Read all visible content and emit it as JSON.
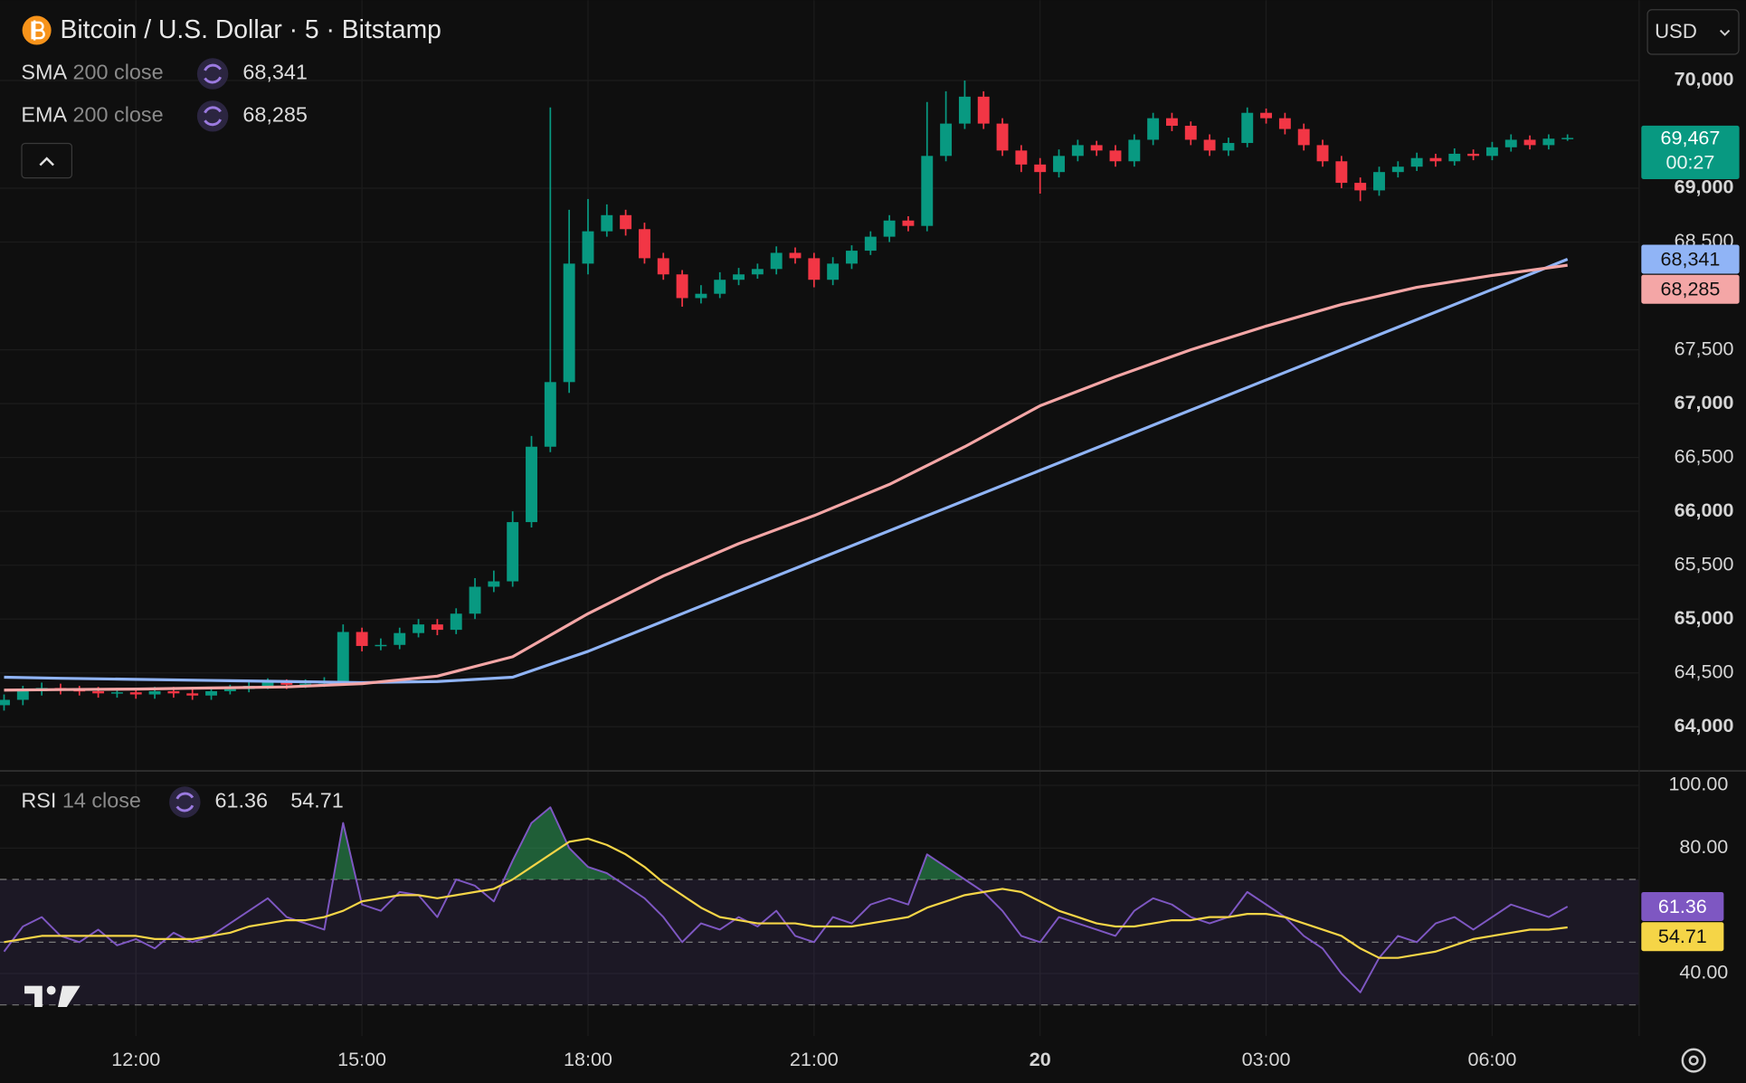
{
  "header": {
    "symbol": "Bitcoin / U.S. Dollar · 5 · Bitstamp",
    "currency": "USD"
  },
  "chart_data": [
    {
      "type": "candlestick",
      "x": [
        10.25,
        10.5,
        10.75,
        11,
        11.25,
        11.5,
        11.75,
        12,
        12.25,
        12.5,
        12.75,
        13,
        13.25,
        13.5,
        13.75,
        14,
        14.25,
        14.5,
        14.75,
        15,
        15.25,
        15.5,
        15.75,
        16,
        16.25,
        16.5,
        16.75,
        17,
        17.25,
        17.5,
        17.75,
        18,
        18.25,
        18.5,
        18.75,
        19,
        19.25,
        19.5,
        19.75,
        20,
        20.25,
        20.5,
        20.75,
        21,
        21.25,
        21.5,
        21.75,
        22,
        22.25,
        22.5,
        22.75,
        23,
        23.25,
        23.5,
        23.75,
        24,
        24.25,
        24.5,
        24.75,
        25,
        25.25,
        25.5,
        25.75,
        26,
        26.25,
        26.5,
        26.75,
        27,
        27.25,
        27.5,
        27.75,
        28,
        28.25,
        28.5,
        28.75,
        29,
        29.25,
        29.5,
        29.75,
        30,
        30.25,
        30.5,
        30.75,
        31
      ],
      "open": [
        64200,
        64250,
        64330,
        64360,
        64340,
        64330,
        64310,
        64320,
        64300,
        64330,
        64310,
        64290,
        64330,
        64350,
        64380,
        64410,
        64390,
        64400,
        64420,
        64880,
        64750,
        64760,
        64870,
        64950,
        64900,
        65050,
        65300,
        65350,
        65900,
        66600,
        67200,
        68300,
        68600,
        68750,
        68620,
        68350,
        68200,
        67980,
        68020,
        68150,
        68200,
        68250,
        68400,
        68350,
        68150,
        68300,
        68420,
        68550,
        68700,
        68650,
        69300,
        69600,
        69850,
        69600,
        69350,
        69220,
        69150,
        69300,
        69400,
        69350,
        69250,
        69450,
        69650,
        69580,
        69450,
        69350,
        69420,
        69700,
        69650,
        69550,
        69400,
        69250,
        69050,
        68980,
        69150,
        69200,
        69280,
        69250,
        69320,
        69300,
        69380,
        69450,
        69400,
        69460
      ],
      "high": [
        64300,
        64380,
        64410,
        64400,
        64380,
        64370,
        64360,
        64360,
        64370,
        64370,
        64350,
        64370,
        64390,
        64420,
        64450,
        64440,
        64440,
        64460,
        64950,
        64920,
        64820,
        64920,
        65000,
        65000,
        65100,
        65380,
        65450,
        66000,
        66700,
        69750,
        68800,
        68900,
        68850,
        68800,
        68680,
        68400,
        68240,
        68100,
        68220,
        68260,
        68300,
        68460,
        68450,
        68400,
        68360,
        68470,
        68600,
        68750,
        68740,
        69800,
        69900,
        70000,
        69900,
        69650,
        69400,
        69280,
        69360,
        69450,
        69440,
        69400,
        69500,
        69700,
        69700,
        69620,
        69500,
        69470,
        69750,
        69740,
        69700,
        69600,
        69450,
        69300,
        69100,
        69200,
        69250,
        69330,
        69320,
        69370,
        69360,
        69430,
        69500,
        69490,
        69500,
        69500
      ],
      "low": [
        64150,
        64200,
        64290,
        64300,
        64290,
        64270,
        64270,
        64260,
        64260,
        64270,
        64250,
        64250,
        64300,
        64320,
        64350,
        64350,
        64360,
        64370,
        64400,
        64700,
        64710,
        64720,
        64830,
        64850,
        64860,
        65000,
        65250,
        65300,
        65850,
        66550,
        67100,
        68200,
        68550,
        68560,
        68300,
        68150,
        67900,
        67930,
        67980,
        68100,
        68160,
        68200,
        68300,
        68080,
        68100,
        68250,
        68380,
        68500,
        68600,
        68600,
        69250,
        69550,
        69550,
        69300,
        69150,
        68950,
        69100,
        69250,
        69300,
        69200,
        69200,
        69400,
        69530,
        69400,
        69300,
        69300,
        69380,
        69600,
        69500,
        69350,
        69200,
        69000,
        68880,
        68930,
        69100,
        69160,
        69200,
        69210,
        69260,
        69260,
        69340,
        69360,
        69360,
        69440
      ],
      "close": [
        64250,
        64330,
        64360,
        64340,
        64330,
        64310,
        64320,
        64300,
        64330,
        64310,
        64290,
        64330,
        64350,
        64380,
        64410,
        64390,
        64400,
        64420,
        64880,
        64750,
        64760,
        64870,
        64950,
        64900,
        65050,
        65300,
        65350,
        65900,
        66600,
        67200,
        68300,
        68600,
        68750,
        68620,
        68350,
        68200,
        67980,
        68020,
        68150,
        68200,
        68250,
        68400,
        68350,
        68150,
        68300,
        68420,
        68550,
        68700,
        68650,
        69300,
        69600,
        69850,
        69600,
        69350,
        69220,
        69150,
        69300,
        69400,
        69350,
        69250,
        69450,
        69650,
        69580,
        69450,
        69350,
        69420,
        69700,
        69650,
        69550,
        69400,
        69250,
        69050,
        68980,
        69150,
        69200,
        69280,
        69250,
        69320,
        69300,
        69380,
        69450,
        69400,
        69460,
        69467
      ],
      "up_color": "#089981",
      "down_color": "#f23645",
      "last_price_label": "69,467",
      "countdown": "00:27",
      "xlim": [
        10.27,
        31.95
      ],
      "ylim": [
        63590,
        70745
      ],
      "yticks": [
        {
          "value": 64000,
          "label": "64,000"
        },
        {
          "value": 64500,
          "label": "64,500"
        },
        {
          "value": 65000,
          "label": "65,000"
        },
        {
          "value": 65500,
          "label": "65,500"
        },
        {
          "value": 66000,
          "label": "66,000"
        },
        {
          "value": 66500,
          "label": "66,500"
        },
        {
          "value": 67000,
          "label": "67,000"
        },
        {
          "value": 67500,
          "label": "67,500"
        },
        {
          "value": 68500,
          "label": "68,500"
        },
        {
          "value": 69000,
          "label": "69,000"
        },
        {
          "value": 70000,
          "label": "70,000"
        }
      ],
      "grid": true,
      "overlays": [
        {
          "name": "SMA",
          "params": "200 close",
          "color": "#90b4f6",
          "value_label": "68,341",
          "x": [
            10.25,
            11,
            12,
            13,
            14,
            15,
            16,
            17,
            18,
            19,
            20,
            21,
            22,
            23,
            24,
            25,
            26,
            27,
            28,
            29,
            30,
            31
          ],
          "values": [
            64460,
            64450,
            64440,
            64430,
            64420,
            64410,
            64420,
            64460,
            64700,
            64980,
            65260,
            65540,
            65820,
            66100,
            66380,
            66660,
            66940,
            67220,
            67500,
            67780,
            68060,
            68341
          ]
        },
        {
          "name": "EMA",
          "params": "200 close",
          "color": "#f4a6a6",
          "value_label": "68,285",
          "x": [
            10.25,
            11,
            12,
            13,
            14,
            15,
            16,
            17,
            18,
            19,
            20,
            21,
            22,
            23,
            24,
            25,
            26,
            27,
            28,
            29,
            30,
            31
          ],
          "values": [
            64340,
            64345,
            64350,
            64360,
            64370,
            64400,
            64470,
            64650,
            65050,
            65400,
            65700,
            65960,
            66250,
            66600,
            66980,
            67250,
            67500,
            67720,
            67920,
            68080,
            68190,
            68285
          ]
        }
      ]
    },
    {
      "type": "line",
      "title": "RSI",
      "params": "14 close",
      "x": [
        10.25,
        10.5,
        10.75,
        11,
        11.25,
        11.5,
        11.75,
        12,
        12.25,
        12.5,
        12.75,
        13,
        13.25,
        13.5,
        13.75,
        14,
        14.25,
        14.5,
        14.75,
        15,
        15.25,
        15.5,
        15.75,
        16,
        16.25,
        16.5,
        16.75,
        17,
        17.25,
        17.5,
        17.75,
        18,
        18.25,
        18.5,
        18.75,
        19,
        19.25,
        19.5,
        19.75,
        20,
        20.25,
        20.5,
        20.75,
        21,
        21.25,
        21.5,
        21.75,
        22,
        22.25,
        22.5,
        22.75,
        23,
        23.25,
        23.5,
        23.75,
        24,
        24.25,
        24.5,
        24.75,
        25,
        25.25,
        25.5,
        25.75,
        26,
        26.25,
        26.5,
        26.75,
        27,
        27.25,
        27.5,
        27.75,
        28,
        28.25,
        28.5,
        28.75,
        29,
        29.25,
        29.5,
        29.75,
        30,
        30.25,
        30.5,
        30.75,
        31
      ],
      "series": [
        {
          "color": "#7e57c2",
          "value_label": "61.36",
          "values": [
            47,
            55,
            58,
            52,
            50,
            54,
            49,
            51,
            48,
            53,
            50,
            52,
            56,
            60,
            64,
            58,
            56,
            54,
            88,
            62,
            60,
            66,
            65,
            58,
            70,
            68,
            63,
            76,
            88,
            93,
            80,
            74,
            72,
            68,
            64,
            58,
            50,
            56,
            54,
            58,
            55,
            60,
            52,
            50,
            58,
            56,
            62,
            64,
            62,
            78,
            74,
            70,
            66,
            60,
            52,
            50,
            58,
            56,
            54,
            52,
            60,
            64,
            62,
            58,
            56,
            58,
            66,
            62,
            58,
            52,
            48,
            40,
            34,
            45,
            52,
            50,
            56,
            58,
            54,
            58,
            62,
            60,
            58,
            61.36
          ]
        },
        {
          "color": "#f5d547",
          "value_label": "54.71",
          "values": [
            50,
            51,
            52,
            52,
            52,
            52,
            52,
            52,
            51,
            51,
            51,
            52,
            53,
            55,
            56,
            57,
            57,
            58,
            60,
            63,
            64,
            65,
            65,
            64,
            65,
            66,
            67,
            70,
            74,
            78,
            82,
            83,
            81,
            78,
            74,
            69,
            65,
            61,
            58,
            57,
            56,
            56,
            56,
            55,
            55,
            55,
            56,
            57,
            58,
            61,
            63,
            65,
            66,
            67,
            66,
            63,
            60,
            58,
            56,
            55,
            55,
            56,
            57,
            57,
            58,
            58,
            59,
            59,
            58,
            56,
            54,
            52,
            48,
            45,
            45,
            46,
            47,
            49,
            51,
            52,
            53,
            54,
            54,
            54.71
          ]
        }
      ],
      "bands": [
        70,
        50,
        30
      ],
      "xlim": [
        10.27,
        31.95
      ],
      "xticks": [
        {
          "value": 12,
          "label": "12:00"
        },
        {
          "value": 15,
          "label": "15:00"
        },
        {
          "value": 18,
          "label": "18:00"
        },
        {
          "value": 21,
          "label": "21:00"
        },
        {
          "value": 24,
          "label": "20"
        },
        {
          "value": 27,
          "label": "03:00"
        },
        {
          "value": 30,
          "label": "06:00"
        }
      ],
      "ylim": [
        20.1,
        104.6
      ],
      "yticks": [
        {
          "value": 100,
          "label": "100.00"
        },
        {
          "value": 80,
          "label": "80.00"
        },
        {
          "value": 40,
          "label": "40.00"
        }
      ],
      "grid": true
    }
  ]
}
